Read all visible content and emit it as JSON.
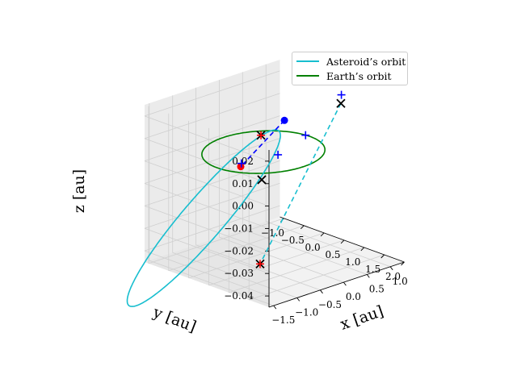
{
  "chart_data": {
    "type": "line",
    "projection": "3d",
    "xlabel": "x [au]",
    "ylabel": "y [au]",
    "zlabel": "z [au]",
    "xlim": [
      -1.6,
      1.3
    ],
    "ylim": [
      -1.1,
      2.0
    ],
    "zlim": [
      -0.045,
      0.025
    ],
    "x_ticks": [
      "−1.5",
      "−1.0",
      "−0.5",
      "0.0",
      "0.5",
      "1.0"
    ],
    "y_ticks": [
      "−1.0",
      "−0.5",
      "0.0",
      "0.5",
      "1.0",
      "1.5",
      "2.0"
    ],
    "z_ticks": [
      "−0.04",
      "−0.03",
      "−0.02",
      "−0.01",
      "0.00",
      "0.01",
      "0.02"
    ],
    "grid": true,
    "legend": {
      "placement": "top-right"
    },
    "series": [
      {
        "name": "Asteroid’s orbit",
        "color": "#17becf",
        "style": "solid",
        "a": 1.25,
        "e": 0.78,
        "inclination_deg": 1.6,
        "perihelion_angle_deg": 34,
        "node_angle_deg": 214
      },
      {
        "name": "Earth’s orbit",
        "color": "#008000",
        "style": "solid",
        "radius": 1.0
      }
    ],
    "segments": [
      {
        "color": "#17becf",
        "style": "dashed",
        "from": [
          1.05,
          0.71,
          0.019
        ],
        "to": [
          -1.06,
          1.15,
          -0.035
        ]
      },
      {
        "color": "#0000ff",
        "style": "dashed",
        "from": [
          0.45,
          0.0,
          0.011
        ],
        "to": [
          -0.7,
          0.25,
          0.0
        ]
      }
    ],
    "markers": [
      {
        "symbol": "dot",
        "color": "#0000ff",
        "point": [
          0.45,
          0.0,
          0.011
        ]
      },
      {
        "symbol": "dot",
        "color": "#ff0000",
        "point": [
          -0.7,
          0.25,
          0.0
        ]
      },
      {
        "symbol": "plus",
        "color": "#0000ff",
        "point": [
          1.25,
          0.49,
          0.02
        ]
      },
      {
        "symbol": "plus",
        "color": "#0000ff",
        "point": [
          0.08,
          0.27,
          0.0
        ]
      },
      {
        "symbol": "plus",
        "color": "#0000ff",
        "point": [
          0.99,
          -0.1,
          0.0
        ]
      },
      {
        "symbol": "plus",
        "color": "#0000ff",
        "point": [
          -0.18,
          -0.34,
          -0.006
        ]
      },
      {
        "symbol": "x",
        "color": "#000000",
        "point": [
          1.05,
          0.71,
          0.019
        ]
      },
      {
        "symbol": "x",
        "color": "#000000",
        "point": [
          -0.87,
          0.97,
          0.0
        ]
      },
      {
        "symbol": "x",
        "color": "#000000",
        "point": [
          -1.06,
          1.15,
          -0.035
        ]
      },
      {
        "symbol": "x",
        "color": "#000000",
        "point": [
          0.49,
          -0.63,
          0.0
        ]
      },
      {
        "symbol": "plus",
        "color": "#ff0000",
        "point": [
          -1.06,
          1.15,
          -0.035
        ]
      },
      {
        "symbol": "plus",
        "color": "#ff0000",
        "point": [
          0.49,
          -0.63,
          0.0
        ]
      }
    ]
  }
}
